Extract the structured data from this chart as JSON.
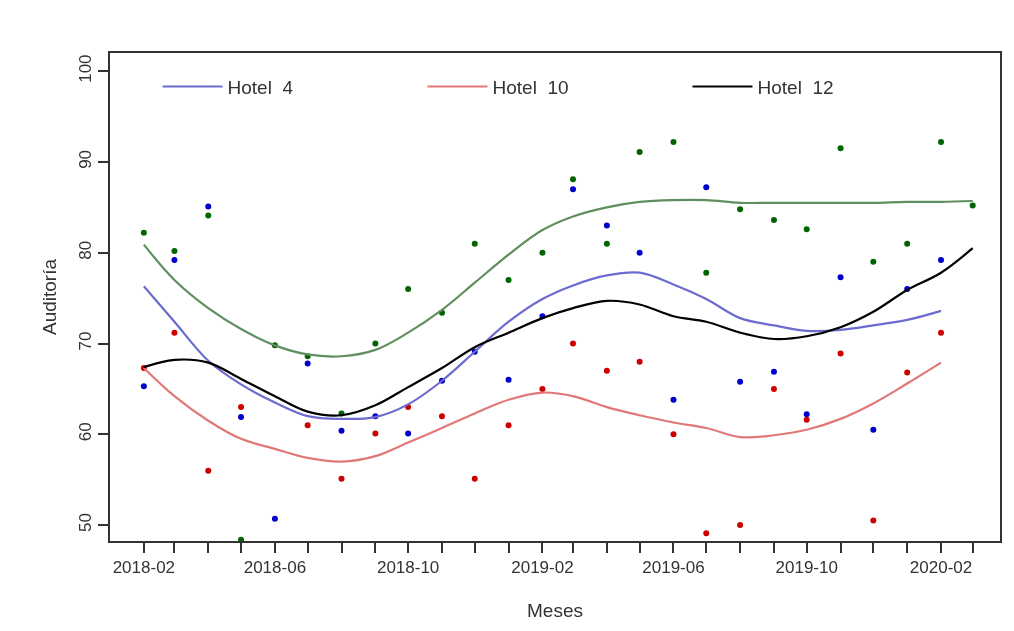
{
  "chart_data": {
    "type": "scatter",
    "xlabel": "Meses",
    "ylabel": "Auditoría",
    "x": [
      "2018-02",
      "2018-03",
      "2018-04",
      "2018-05",
      "2018-06",
      "2018-07",
      "2018-08",
      "2018-09",
      "2018-10",
      "2018-11",
      "2018-12",
      "2019-01",
      "2019-02",
      "2019-03",
      "2019-04",
      "2019-05",
      "2019-06",
      "2019-07",
      "2019-08",
      "2019-09",
      "2019-10",
      "2019-11",
      "2019-12",
      "2020-01",
      "2020-02",
      "2020-03"
    ],
    "series": [
      {
        "color": "#0000cc",
        "values": [
          65.3,
          79.2,
          85.1,
          61.9,
          50.7,
          67.8,
          60.4,
          62.0,
          60.1,
          65.9,
          69.1,
          66.0,
          73.0,
          87.0,
          83.0,
          80.0,
          63.8,
          87.2,
          65.8,
          66.9,
          62.2,
          77.3,
          60.5,
          76.0,
          79.2,
          null
        ]
      },
      {
        "color": "#cc0000",
        "values": [
          67.3,
          71.2,
          56.0,
          63.0,
          null,
          61.0,
          55.1,
          60.1,
          63.0,
          62.0,
          55.1,
          61.0,
          65.0,
          70.0,
          67.0,
          68.0,
          60.0,
          49.1,
          50.0,
          65.0,
          61.6,
          68.9,
          50.5,
          66.8,
          71.2,
          null
        ]
      },
      {
        "color": "#006400",
        "values": [
          82.2,
          80.2,
          84.1,
          48.4,
          69.8,
          68.6,
          62.3,
          70.0,
          76.0,
          73.4,
          81.0,
          77.0,
          80.0,
          88.1,
          81.0,
          91.1,
          92.2,
          77.8,
          84.8,
          83.6,
          82.6,
          91.5,
          79.0,
          81.0,
          92.2,
          85.2
        ]
      },
      {
        "type": "line",
        "color": "#5f8f5f",
        "values": [
          80.9,
          77.0,
          73.9,
          71.6,
          69.8,
          68.8,
          68.6,
          69.3,
          71.2,
          73.7,
          76.7,
          79.8,
          82.5,
          84.0,
          85.0,
          85.6,
          85.8,
          85.8,
          85.5,
          85.5,
          85.5,
          85.5,
          85.5,
          85.6,
          85.6,
          85.7
        ]
      },
      {
        "type": "line",
        "name": "Hotel  4",
        "color": "#6b6bd0",
        "values": [
          76.3,
          72.4,
          68.1,
          65.5,
          63.5,
          62.0,
          61.7,
          61.9,
          63.3,
          65.9,
          69.1,
          72.4,
          74.9,
          76.4,
          77.5,
          77.8,
          76.5,
          74.9,
          72.8,
          72.0,
          71.4,
          71.5,
          72.0,
          72.6,
          73.6,
          null
        ]
      },
      {
        "type": "line",
        "name": "Hotel  10",
        "color": "#e07878",
        "values": [
          67.3,
          64.2,
          61.5,
          59.5,
          58.4,
          57.4,
          57.0,
          57.6,
          59.1,
          60.7,
          62.3,
          63.8,
          64.6,
          64.2,
          63.0,
          62.1,
          61.3,
          60.7,
          59.7,
          59.9,
          60.5,
          61.7,
          63.4,
          65.6,
          67.9,
          null
        ]
      },
      {
        "type": "line",
        "name": "Hotel  12",
        "color": "#000000",
        "values": [
          67.4,
          68.2,
          67.9,
          66.1,
          64.2,
          62.5,
          62.1,
          63.2,
          65.2,
          67.3,
          69.6,
          71.2,
          72.8,
          73.9,
          74.7,
          74.3,
          73.0,
          72.4,
          71.2,
          70.5,
          70.8,
          71.8,
          73.5,
          75.9,
          77.8,
          80.5
        ]
      }
    ],
    "xlim": [
      "2018-01-01",
      "2020-03-26"
    ],
    "xticks": [
      {
        "value": "2018-02",
        "label": "2018-02"
      },
      {
        "value": "2018-03",
        "label": null
      },
      {
        "value": "2018-04",
        "label": null
      },
      {
        "value": "2018-05",
        "label": null
      },
      {
        "value": "2018-06",
        "label": "2018-06"
      },
      {
        "value": "2018-07",
        "label": null
      },
      {
        "value": "2018-08",
        "label": null
      },
      {
        "value": "2018-09",
        "label": null
      },
      {
        "value": "2018-10",
        "label": "2018-10"
      },
      {
        "value": "2018-11",
        "label": null
      },
      {
        "value": "2018-12",
        "label": null
      },
      {
        "value": "2019-01",
        "label": null
      },
      {
        "value": "2019-02",
        "label": "2019-02"
      },
      {
        "value": "2019-03",
        "label": null
      },
      {
        "value": "2019-04",
        "label": null
      },
      {
        "value": "2019-05",
        "label": null
      },
      {
        "value": "2019-06",
        "label": "2019-06"
      },
      {
        "value": "2019-07",
        "label": null
      },
      {
        "value": "2019-08",
        "label": null
      },
      {
        "value": "2019-09",
        "label": null
      },
      {
        "value": "2019-10",
        "label": "2019-10"
      },
      {
        "value": "2019-11",
        "label": null
      },
      {
        "value": "2019-12",
        "label": null
      },
      {
        "value": "2020-01",
        "label": null
      },
      {
        "value": "2020-02",
        "label": "2020-02"
      },
      {
        "value": "2020-03",
        "label": null
      }
    ],
    "ylim": [
      48.25,
      102.0
    ],
    "yticks": [
      50,
      60,
      70,
      80,
      90,
      100
    ],
    "legend": "top",
    "line_style": "solid"
  }
}
